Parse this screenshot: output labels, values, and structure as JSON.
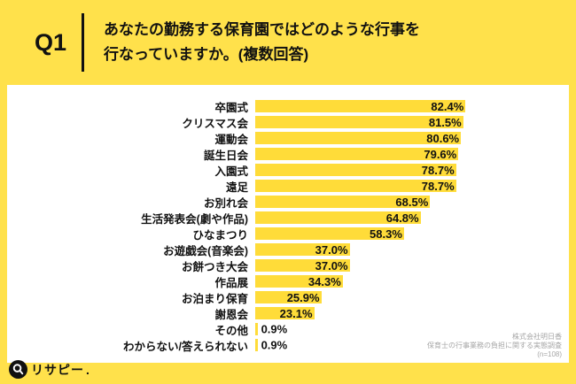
{
  "page": {
    "background_color": "#FFE14B",
    "panel_color": "#ffffff"
  },
  "header": {
    "q_label": "Q1",
    "question_line1": "あなたの勤務する保育園ではどのような行事を",
    "question_line2": "行なっていますか。(複数回答)"
  },
  "chart_data": {
    "type": "bar",
    "orientation": "horizontal",
    "title": "あなたの勤務する保育園ではどのような行事を行なっていますか。(複数回答)",
    "categories": [
      "卒園式",
      "クリスマス会",
      "運動会",
      "誕生日会",
      "入園式",
      "遠足",
      "お別れ会",
      "生活発表会(劇や作品)",
      "ひなまつり",
      "お遊戯会(音楽会)",
      "お餅つき大会",
      "作品展",
      "お泊まり保育",
      "謝恩会",
      "その他",
      "わからない/答えられない"
    ],
    "values": [
      82.4,
      81.5,
      80.6,
      79.6,
      78.7,
      78.7,
      68.5,
      64.8,
      58.3,
      37.0,
      37.0,
      34.3,
      25.9,
      23.1,
      0.9,
      0.9
    ],
    "value_suffix": "%",
    "value_labels": true,
    "bar_color": "#FFDC39",
    "grid": false,
    "legend": false,
    "axis_labels_shown": false
  },
  "footer": {
    "logo_text": "リサピー",
    "logo_period": ".",
    "source_line1": "株式会社明日香",
    "source_line2": "保育士の行事業務の負担に関する実態調査",
    "source_line3": "(n=108)"
  }
}
